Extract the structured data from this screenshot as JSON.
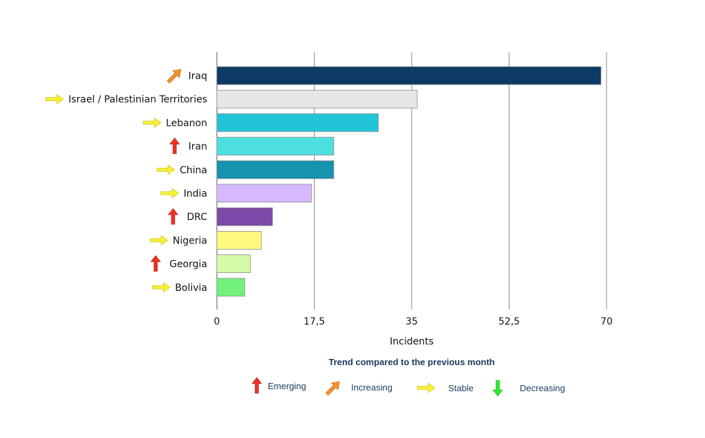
{
  "chart_data": {
    "type": "bar",
    "orientation": "horizontal",
    "categories": [
      "Iraq",
      "Israel / Palestinian Territories",
      "Lebanon",
      "Iran",
      "China",
      "India",
      "DRC",
      "Nigeria",
      "Georgia",
      "Bolivia"
    ],
    "values": [
      69,
      36,
      29,
      21,
      21,
      17,
      10,
      8,
      6,
      5
    ],
    "bar_colors": [
      "#0d3b66",
      "#e6e6e6",
      "#22c5d8",
      "#4ddfe0",
      "#1693ad",
      "#d6b8fc",
      "#7b4aa8",
      "#fffb80",
      "#d5fba8",
      "#72f27a"
    ],
    "trends": [
      "increasing",
      "stable",
      "stable",
      "emerging",
      "stable",
      "stable",
      "emerging",
      "stable",
      "emerging",
      "stable"
    ],
    "xlabel": "Incidents",
    "xlim": [
      0,
      70
    ],
    "xticks": [
      "0",
      "17,5",
      "35",
      "52,5",
      "70"
    ],
    "xtick_values": [
      0,
      17.5,
      35,
      52.5,
      70
    ],
    "grid": "vertical"
  },
  "legend": {
    "title": "Trend compared to the previous month",
    "items": [
      {
        "key": "emerging",
        "label": "Emerging"
      },
      {
        "key": "increasing",
        "label": "Increasing"
      },
      {
        "key": "stable",
        "label": "Stable"
      },
      {
        "key": "decreasing",
        "label": "Decreasing"
      }
    ]
  },
  "trend_icons": {
    "emerging": {
      "icon": "arrow-up-icon",
      "color": "#ee3124"
    },
    "increasing": {
      "icon": "arrow-diagonal-up-icon",
      "color": "#f0922b"
    },
    "stable": {
      "icon": "arrow-right-icon",
      "color": "#f5ef38"
    },
    "decreasing": {
      "icon": "arrow-down-icon",
      "color": "#2ee82e"
    }
  }
}
